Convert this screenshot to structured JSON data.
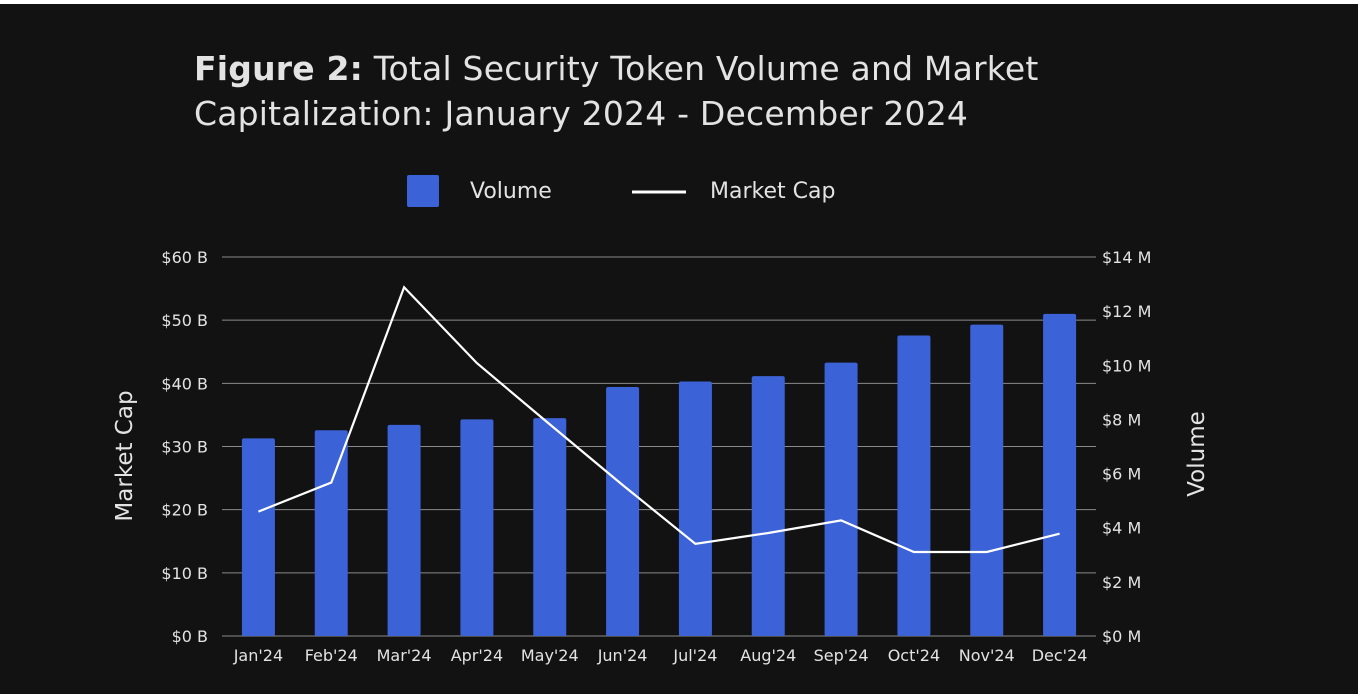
{
  "title": {
    "prefix": "Figure 2:",
    "text": "Total Security Token Volume and Market Capitalization: January 2024 - December 2024"
  },
  "colors": {
    "background": "#121212",
    "bar": "#3b62d6",
    "line": "#ffffff",
    "text": "#e3e3e3",
    "grid": "#8a8a8a"
  },
  "chart_data": {
    "type": "bar",
    "categories": [
      "Jan'24",
      "Feb'24",
      "Mar'24",
      "Apr'24",
      "May'24",
      "Jun'24",
      "Jul'24",
      "Aug'24",
      "Sep'24",
      "Oct'24",
      "Nov'24",
      "Dec'24"
    ],
    "series": [
      {
        "name": "Volume",
        "type": "bar",
        "axis": "right",
        "values": [
          7.3,
          7.6,
          7.8,
          8.0,
          8.05,
          9.2,
          9.4,
          9.6,
          10.1,
          11.1,
          11.5,
          11.9
        ]
      },
      {
        "name": "Market Cap",
        "type": "line",
        "axis": "left",
        "values": [
          19.7,
          24.3,
          55.2,
          43.2,
          33.5,
          23.9,
          14.6,
          16.3,
          18.3,
          13.3,
          13.3,
          16.2
        ]
      }
    ],
    "ylabel": "Market Cap",
    "y2label": "Volume",
    "ylim": [
      0,
      60
    ],
    "y2lim": [
      0,
      14
    ],
    "yticks": [
      "$0 B",
      "$10 B",
      "$20 B",
      "$30 B",
      "$40 B",
      "$50 B",
      "$60 B"
    ],
    "y2ticks": [
      "$0 M",
      "$2 M",
      "$4 M",
      "$6 M",
      "$8 M",
      "$10 M",
      "$12 M",
      "$14 M"
    ],
    "grid": true,
    "legend_position": "top-center"
  }
}
